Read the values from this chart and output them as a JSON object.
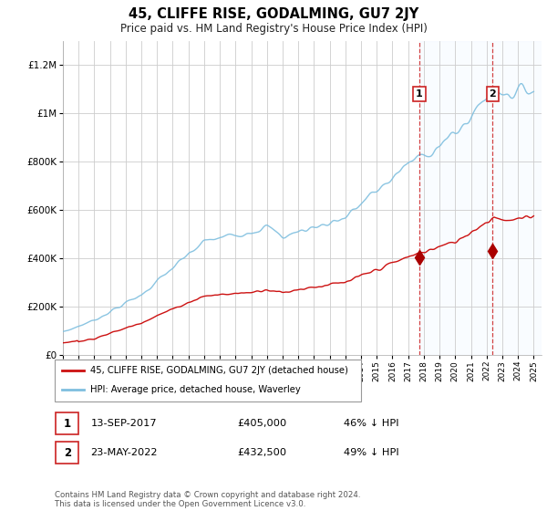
{
  "title": "45, CLIFFE RISE, GODALMING, GU7 2JY",
  "subtitle": "Price paid vs. HM Land Registry's House Price Index (HPI)",
  "hpi_label": "HPI: Average price, detached house, Waverley",
  "price_label": "45, CLIFFE RISE, GODALMING, GU7 2JY (detached house)",
  "annotation1": {
    "num": "1",
    "date": "13-SEP-2017",
    "price": 405000,
    "pct": "46% ↓ HPI"
  },
  "annotation2": {
    "num": "2",
    "date": "23-MAY-2022",
    "price": 432500,
    "pct": "49% ↓ HPI"
  },
  "copyright": "Contains HM Land Registry data © Crown copyright and database right 2024.\nThis data is licensed under the Open Government Licence v3.0.",
  "ylim": [
    0,
    1300000
  ],
  "yticks": [
    0,
    200000,
    400000,
    600000,
    800000,
    1000000,
    1200000
  ],
  "hpi_color": "#7fbfdf",
  "price_color": "#cc1111",
  "vline_color": "#cc2222",
  "point_color": "#aa0000",
  "bg_shade_color": "#ddeeff",
  "grid_color": "#cccccc",
  "t1": 2017.708,
  "t2": 2022.375,
  "p1": 405000,
  "p2": 432500,
  "xstart": 1995,
  "xend": 2025.5
}
